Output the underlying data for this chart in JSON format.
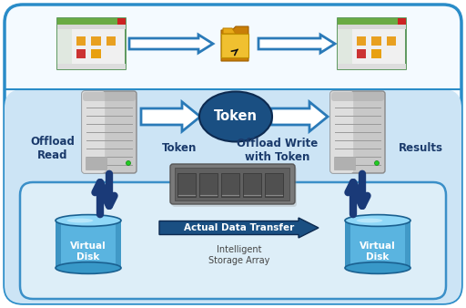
{
  "outer_border_color": "#2a8cc8",
  "outer_border_lw": 2.5,
  "top_bg": "#f0f8ff",
  "bottom_bg": "#cce4f5",
  "disk_panel_bg": "#d8eef8",
  "disk_panel_border": "#3a8fc8",
  "token_text": "Token",
  "token_bg": "#1a4f82",
  "label_offload_read": "Offload\nRead",
  "label_token": "Token",
  "label_offload_write": "Offload Write\nwith Token",
  "label_results": "Results",
  "label_virtual_disk": "Virtual\nDisk",
  "label_actual_data": "Actual Data Transfer",
  "label_storage_array": "Intelligent\nStorage Array",
  "label_color": "#1a3a6b",
  "arrow_outline_color": "#2a7ab8",
  "arrow_blue_color": "#1e3f7a",
  "figsize": [
    5.12,
    3.38
  ],
  "dpi": 100
}
